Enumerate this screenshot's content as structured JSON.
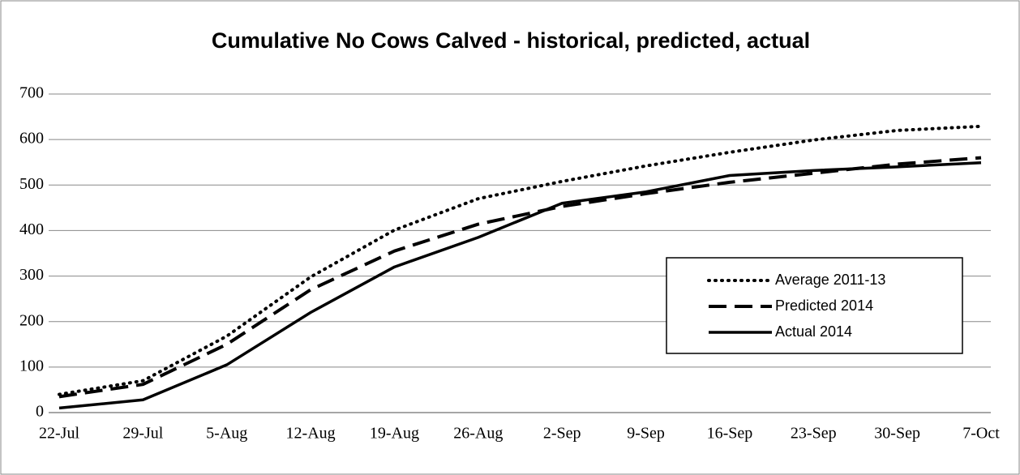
{
  "chart_data": {
    "type": "line",
    "title": "Cumulative No Cows Calved - historical, predicted, actual",
    "categories": [
      "22-Jul",
      "29-Jul",
      "5-Aug",
      "12-Aug",
      "19-Aug",
      "26-Aug",
      "2-Sep",
      "9-Sep",
      "16-Sep",
      "23-Sep",
      "30-Sep",
      "7-Oct"
    ],
    "series": [
      {
        "name": "Average 2011-13",
        "color": "#000000",
        "dash": "dotted",
        "values": [
          40,
          70,
          168,
          298,
          401,
          470,
          508,
          542,
          572,
          599,
          620,
          629
        ]
      },
      {
        "name": "Predicted 2014",
        "color": "#000000",
        "dash": "dashed",
        "values": [
          35,
          62,
          150,
          270,
          355,
          414,
          453,
          481,
          506,
          526,
          546,
          560
        ]
      },
      {
        "name": "Actual 2014",
        "color": "#000000",
        "dash": "solid",
        "values": [
          10,
          28,
          105,
          220,
          320,
          385,
          460,
          485,
          521,
          532,
          540,
          549
        ]
      }
    ],
    "ylim": [
      0,
      700
    ],
    "yticks": [
      0,
      100,
      200,
      300,
      400,
      500,
      600,
      700
    ],
    "grid": true,
    "legend": "right"
  }
}
